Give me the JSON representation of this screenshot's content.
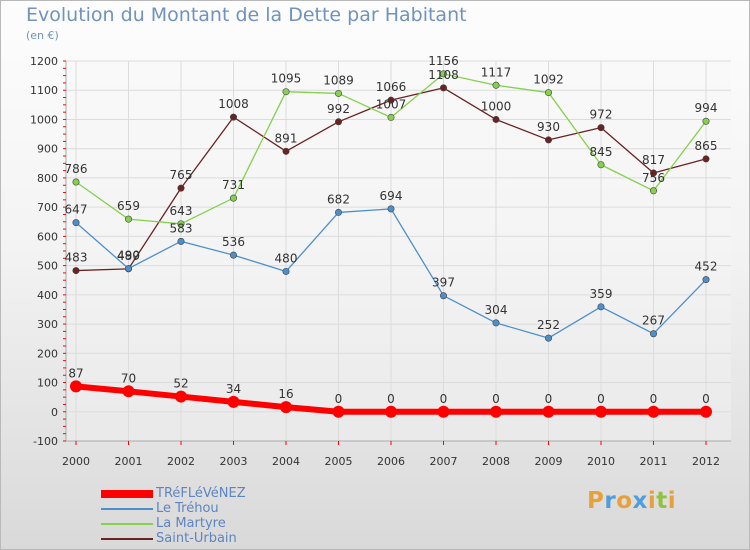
{
  "header": {
    "title": "Evolution du Montant de la Dette par Habitant",
    "subtitle": "(en €)"
  },
  "logo": {
    "text": "Proxiti",
    "colors": [
      "#e8a13a",
      "#4f9ddc",
      "#e8a13a",
      "#4f9ddc",
      "#e8a13a",
      "#8fc23e",
      "#e8a13a"
    ]
  },
  "chart_data": {
    "type": "line",
    "x": [
      "2000",
      "2001",
      "2002",
      "2003",
      "2004",
      "2005",
      "2006",
      "2007",
      "2008",
      "2009",
      "2010",
      "2011",
      "2012"
    ],
    "ylim": [
      -100,
      1200
    ],
    "yticks": [
      -100,
      0,
      100,
      200,
      300,
      400,
      500,
      600,
      700,
      800,
      900,
      1000,
      1100,
      1200
    ],
    "grid": true,
    "legend_position": "bottom-left",
    "series": [
      {
        "name": "TRéFLéVéNEZ",
        "color": "#ff0000",
        "values": [
          87,
          70,
          52,
          34,
          16,
          0,
          0,
          0,
          0,
          0,
          0,
          0,
          0
        ]
      },
      {
        "name": "Le Tréhou",
        "color": "#4d8fcc",
        "values": [
          647,
          490,
          583,
          536,
          480,
          682,
          694,
          397,
          304,
          252,
          359,
          267,
          452
        ]
      },
      {
        "name": "La Martyre",
        "color": "#85d14e",
        "values": [
          786,
          659,
          643,
          731,
          1095,
          1089,
          1007,
          1156,
          1117,
          1092,
          845,
          756,
          994
        ]
      },
      {
        "name": "Saint-Urbain",
        "color": "#6b2222",
        "values": [
          483,
          489,
          765,
          1008,
          891,
          992,
          1066,
          1108,
          1000,
          930,
          972,
          817,
          865
        ]
      }
    ]
  }
}
